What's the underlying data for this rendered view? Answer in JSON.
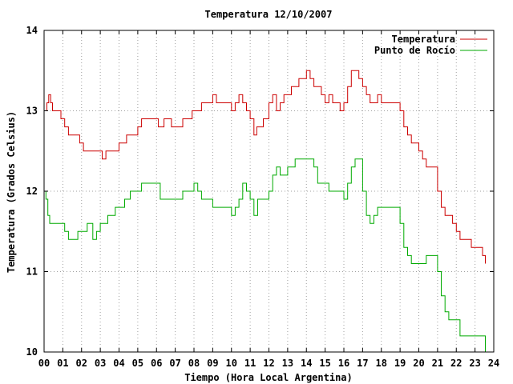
{
  "chart_data": {
    "type": "line",
    "title": "Temperatura 12/10/2007",
    "xlabel": "Tiempo (Hora Local Argentina)",
    "ylabel": "Temperatura (Grados Celsius)",
    "xlim": [
      0,
      24
    ],
    "ylim": [
      10,
      14
    ],
    "grid": true,
    "legend_position": "top-right",
    "x_tick_labels": [
      "00",
      "01",
      "02",
      "03",
      "04",
      "05",
      "06",
      "07",
      "08",
      "09",
      "10",
      "11",
      "12",
      "13",
      "14",
      "15",
      "16",
      "17",
      "18",
      "19",
      "20",
      "21",
      "22",
      "23",
      "24"
    ],
    "y_tick_labels": [
      "10",
      "11",
      "12",
      "13",
      "14"
    ],
    "series": [
      {
        "name": "Temperatura",
        "color": "#cc0000",
        "x": [
          0.0,
          0.15,
          0.25,
          0.35,
          0.45,
          0.55,
          0.9,
          1.1,
          1.3,
          1.5,
          1.9,
          2.1,
          2.5,
          3.0,
          3.1,
          3.3,
          3.6,
          4.0,
          4.2,
          4.4,
          4.8,
          5.0,
          5.2,
          5.5,
          6.0,
          6.1,
          6.4,
          6.8,
          7.0,
          7.4,
          7.9,
          8.2,
          8.4,
          8.7,
          9.0,
          9.2,
          9.4,
          9.8,
          10.0,
          10.2,
          10.4,
          10.6,
          10.8,
          11.0,
          11.2,
          11.35,
          11.5,
          11.7,
          12.0,
          12.2,
          12.4,
          12.6,
          12.8,
          13.0,
          13.2,
          13.4,
          13.6,
          13.8,
          14.0,
          14.2,
          14.4,
          14.6,
          14.8,
          15.0,
          15.2,
          15.4,
          15.6,
          15.8,
          16.0,
          16.2,
          16.4,
          16.6,
          16.8,
          17.0,
          17.2,
          17.4,
          17.6,
          17.8,
          18.0,
          18.3,
          18.6,
          19.0,
          19.2,
          19.4,
          19.6,
          19.8,
          20.0,
          20.2,
          20.4,
          20.6,
          20.8,
          21.0,
          21.2,
          21.4,
          21.6,
          21.8,
          22.0,
          22.2,
          22.4,
          22.6,
          22.8,
          23.0,
          23.2,
          23.4,
          23.55
        ],
        "values": [
          13.0,
          13.1,
          13.2,
          13.1,
          13.0,
          13.0,
          12.9,
          12.8,
          12.7,
          12.7,
          12.6,
          12.5,
          12.5,
          12.5,
          12.4,
          12.5,
          12.5,
          12.6,
          12.6,
          12.7,
          12.7,
          12.8,
          12.9,
          12.9,
          12.9,
          12.8,
          12.9,
          12.8,
          12.8,
          12.9,
          13.0,
          13.0,
          13.1,
          13.1,
          13.2,
          13.1,
          13.1,
          13.1,
          13.0,
          13.1,
          13.2,
          13.1,
          13.0,
          12.9,
          12.7,
          12.8,
          12.8,
          12.9,
          13.1,
          13.2,
          13.0,
          13.1,
          13.2,
          13.2,
          13.3,
          13.3,
          13.4,
          13.4,
          13.5,
          13.4,
          13.3,
          13.3,
          13.2,
          13.1,
          13.2,
          13.1,
          13.1,
          13.0,
          13.1,
          13.3,
          13.5,
          13.5,
          13.4,
          13.3,
          13.2,
          13.1,
          13.1,
          13.2,
          13.1,
          13.1,
          13.1,
          13.0,
          12.8,
          12.7,
          12.6,
          12.6,
          12.5,
          12.4,
          12.3,
          12.3,
          12.3,
          12.0,
          11.8,
          11.7,
          11.7,
          11.6,
          11.5,
          11.4,
          11.4,
          11.4,
          11.3,
          11.3,
          11.3,
          11.2,
          11.1
        ]
      },
      {
        "name": "Punto de Rocío",
        "color": "#00aa00",
        "x": [
          0.0,
          0.1,
          0.2,
          0.3,
          0.5,
          0.8,
          1.0,
          1.1,
          1.3,
          1.6,
          1.8,
          2.1,
          2.3,
          2.6,
          2.8,
          3.0,
          3.2,
          3.4,
          3.6,
          3.8,
          4.0,
          4.3,
          4.6,
          5.0,
          5.2,
          5.6,
          6.0,
          6.2,
          6.6,
          7.0,
          7.2,
          7.4,
          7.8,
          8.0,
          8.2,
          8.4,
          8.6,
          9.0,
          9.2,
          9.5,
          10.0,
          10.2,
          10.4,
          10.6,
          10.8,
          11.0,
          11.2,
          11.4,
          11.6,
          12.0,
          12.2,
          12.4,
          12.6,
          12.8,
          13.0,
          13.2,
          13.4,
          13.6,
          13.8,
          14.0,
          14.2,
          14.4,
          14.6,
          14.8,
          15.0,
          15.2,
          15.5,
          15.8,
          16.0,
          16.2,
          16.4,
          16.6,
          16.8,
          17.0,
          17.2,
          17.4,
          17.6,
          17.8,
          18.0,
          18.2,
          18.4,
          18.6,
          19.0,
          19.2,
          19.4,
          19.6,
          19.8,
          20.0,
          20.2,
          20.4,
          20.6,
          20.8,
          21.0,
          21.2,
          21.4,
          21.6,
          21.8,
          22.0,
          22.2,
          22.4,
          22.6,
          22.8,
          23.0,
          23.2,
          23.4,
          23.55
        ],
        "values": [
          12.0,
          11.9,
          11.7,
          11.6,
          11.6,
          11.6,
          11.6,
          11.5,
          11.4,
          11.4,
          11.5,
          11.5,
          11.6,
          11.4,
          11.5,
          11.6,
          11.6,
          11.7,
          11.7,
          11.8,
          11.8,
          11.9,
          12.0,
          12.0,
          12.1,
          12.1,
          12.1,
          11.9,
          11.9,
          11.9,
          11.9,
          12.0,
          12.0,
          12.1,
          12.0,
          11.9,
          11.9,
          11.8,
          11.8,
          11.8,
          11.7,
          11.8,
          11.9,
          12.1,
          12.0,
          11.9,
          11.7,
          11.9,
          11.9,
          12.0,
          12.2,
          12.3,
          12.2,
          12.2,
          12.3,
          12.3,
          12.4,
          12.4,
          12.4,
          12.4,
          12.4,
          12.3,
          12.1,
          12.1,
          12.1,
          12.0,
          12.0,
          12.0,
          11.9,
          12.1,
          12.3,
          12.4,
          12.4,
          12.0,
          11.7,
          11.6,
          11.7,
          11.8,
          11.8,
          11.8,
          11.8,
          11.8,
          11.6,
          11.3,
          11.2,
          11.1,
          11.1,
          11.1,
          11.1,
          11.2,
          11.2,
          11.2,
          11.0,
          10.7,
          10.5,
          10.4,
          10.4,
          10.4,
          10.2,
          10.2,
          10.2,
          10.2,
          10.2,
          10.2,
          10.2,
          10.0
        ]
      }
    ]
  }
}
